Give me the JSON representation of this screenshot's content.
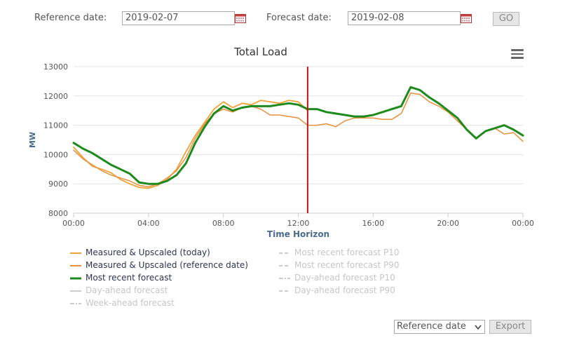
{
  "controls": {
    "reference_label": "Reference date:",
    "reference_value": "2019-02-07",
    "forecast_label": "Forecast date:",
    "forecast_value": "2019-02-08",
    "go_label": "GO",
    "calendar_icon": "calendar-icon",
    "menu_icon": "hamburger-menu-icon"
  },
  "footer": {
    "select_value": "Reference date",
    "export_label": "Export"
  },
  "colors": {
    "today": "#f0a23a",
    "reference": "#e8903a",
    "forecast": "#1e8a1e",
    "marker": "#c0141e",
    "disabled": "#cccccc"
  },
  "legend": {
    "left": [
      {
        "label": "Measured & Upscaled (today)",
        "style": "solid",
        "color": "#f0a23a",
        "active": true
      },
      {
        "label": "Measured & Upscaled (reference date)",
        "style": "solid",
        "color": "#e8903a",
        "active": true
      },
      {
        "label": "Most recent forecast",
        "style": "solid-bold",
        "color": "#1e8a1e",
        "active": true
      },
      {
        "label": "Day-ahead forecast",
        "style": "solid",
        "color": "#cccccc",
        "active": false
      },
      {
        "label": "Week-ahead forecast",
        "style": "dashdot",
        "color": "#cccccc",
        "active": false
      }
    ],
    "right": [
      {
        "label": "Most recent forecast P10",
        "style": "dash",
        "color": "#cccccc",
        "active": false
      },
      {
        "label": "Most recent forecast P90",
        "style": "dash",
        "color": "#cccccc",
        "active": false
      },
      {
        "label": "Day-ahead forecast P10",
        "style": "dashdot",
        "color": "#cccccc",
        "active": false
      },
      {
        "label": "Day-ahead forecast P90",
        "style": "dash",
        "color": "#cccccc",
        "active": false
      }
    ]
  },
  "chart_data": {
    "type": "line",
    "title": "Total Load",
    "xlabel": "Time Horizon",
    "ylabel": "MW",
    "xlim": [
      0,
      24
    ],
    "ylim": [
      8000,
      13000
    ],
    "yticks": [
      8000,
      9000,
      10000,
      11000,
      12000,
      13000
    ],
    "xticks": [
      0,
      4,
      8,
      12,
      16,
      20,
      24
    ],
    "xtick_labels": [
      "00:00",
      "04:00",
      "08:00",
      "12:00",
      "16:00",
      "20:00",
      "00:00"
    ],
    "grid": true,
    "marker_x": 12.5,
    "series": [
      {
        "name": "Measured & Upscaled (today)",
        "color": "#f0a23a",
        "width": 1.8,
        "x": [
          0,
          0.5,
          1,
          1.5,
          2,
          2.5,
          3,
          3.5,
          4,
          4.5,
          5,
          5.5,
          6,
          6.5,
          7,
          7.5,
          8,
          8.5,
          9,
          9.5,
          10,
          10.5,
          11,
          11.5,
          12,
          12.5
        ],
        "y": [
          10250,
          9900,
          9600,
          9500,
          9380,
          9150,
          9000,
          8880,
          8850,
          8950,
          9150,
          9500,
          10100,
          10650,
          11100,
          11550,
          11800,
          11600,
          11750,
          11700,
          11850,
          11800,
          11750,
          11850,
          11800,
          11500
        ]
      },
      {
        "name": "Measured & Upscaled (reference date)",
        "color": "#e8903a",
        "width": 1.5,
        "x": [
          0,
          0.5,
          1,
          1.5,
          2,
          2.5,
          3,
          3.5,
          4,
          4.5,
          5,
          5.5,
          6,
          6.5,
          7,
          7.5,
          8,
          8.5,
          9,
          9.5,
          10,
          10.5,
          11,
          11.5,
          12,
          12.5,
          13,
          13.5,
          14,
          14.5,
          15,
          15.5,
          16,
          16.5,
          17,
          17.5,
          18,
          18.5,
          19,
          19.5,
          20,
          20.5,
          21,
          21.5,
          22,
          22.5,
          23,
          23.5,
          24
        ],
        "y": [
          10150,
          9850,
          9650,
          9450,
          9300,
          9200,
          9100,
          8950,
          8900,
          9000,
          9200,
          9450,
          9900,
          10550,
          11050,
          11400,
          11550,
          11450,
          11600,
          11650,
          11550,
          11350,
          11350,
          11300,
          11250,
          11000,
          11000,
          11050,
          10950,
          11150,
          11250,
          11250,
          11250,
          11200,
          11200,
          11400,
          12100,
          12050,
          11800,
          11650,
          11450,
          11150,
          10850,
          10550,
          10800,
          10900,
          10700,
          10750,
          10450
        ]
      },
      {
        "name": "Most recent forecast",
        "color": "#1e8a1e",
        "width": 3,
        "x": [
          0,
          0.5,
          1,
          1.5,
          2,
          2.5,
          3,
          3.5,
          4,
          4.5,
          5,
          5.5,
          6,
          6.5,
          7,
          7.5,
          8,
          8.5,
          9,
          9.5,
          10,
          10.5,
          11,
          11.5,
          12,
          12.5,
          13,
          13.5,
          14,
          14.5,
          15,
          15.5,
          16,
          16.5,
          17,
          17.5,
          18,
          18.5,
          19,
          19.5,
          20,
          20.5,
          21,
          21.5,
          22,
          22.5,
          23,
          23.5,
          24
        ],
        "y": [
          10400,
          10200,
          10050,
          9850,
          9650,
          9500,
          9350,
          9050,
          9000,
          9000,
          9100,
          9300,
          9700,
          10400,
          10950,
          11400,
          11650,
          11500,
          11600,
          11650,
          11650,
          11650,
          11700,
          11750,
          11700,
          11550,
          11550,
          11450,
          11400,
          11350,
          11300,
          11300,
          11350,
          11450,
          11550,
          11650,
          12300,
          12200,
          11950,
          11750,
          11500,
          11250,
          10850,
          10550,
          10800,
          10900,
          11000,
          10850,
          10650
        ]
      }
    ]
  }
}
